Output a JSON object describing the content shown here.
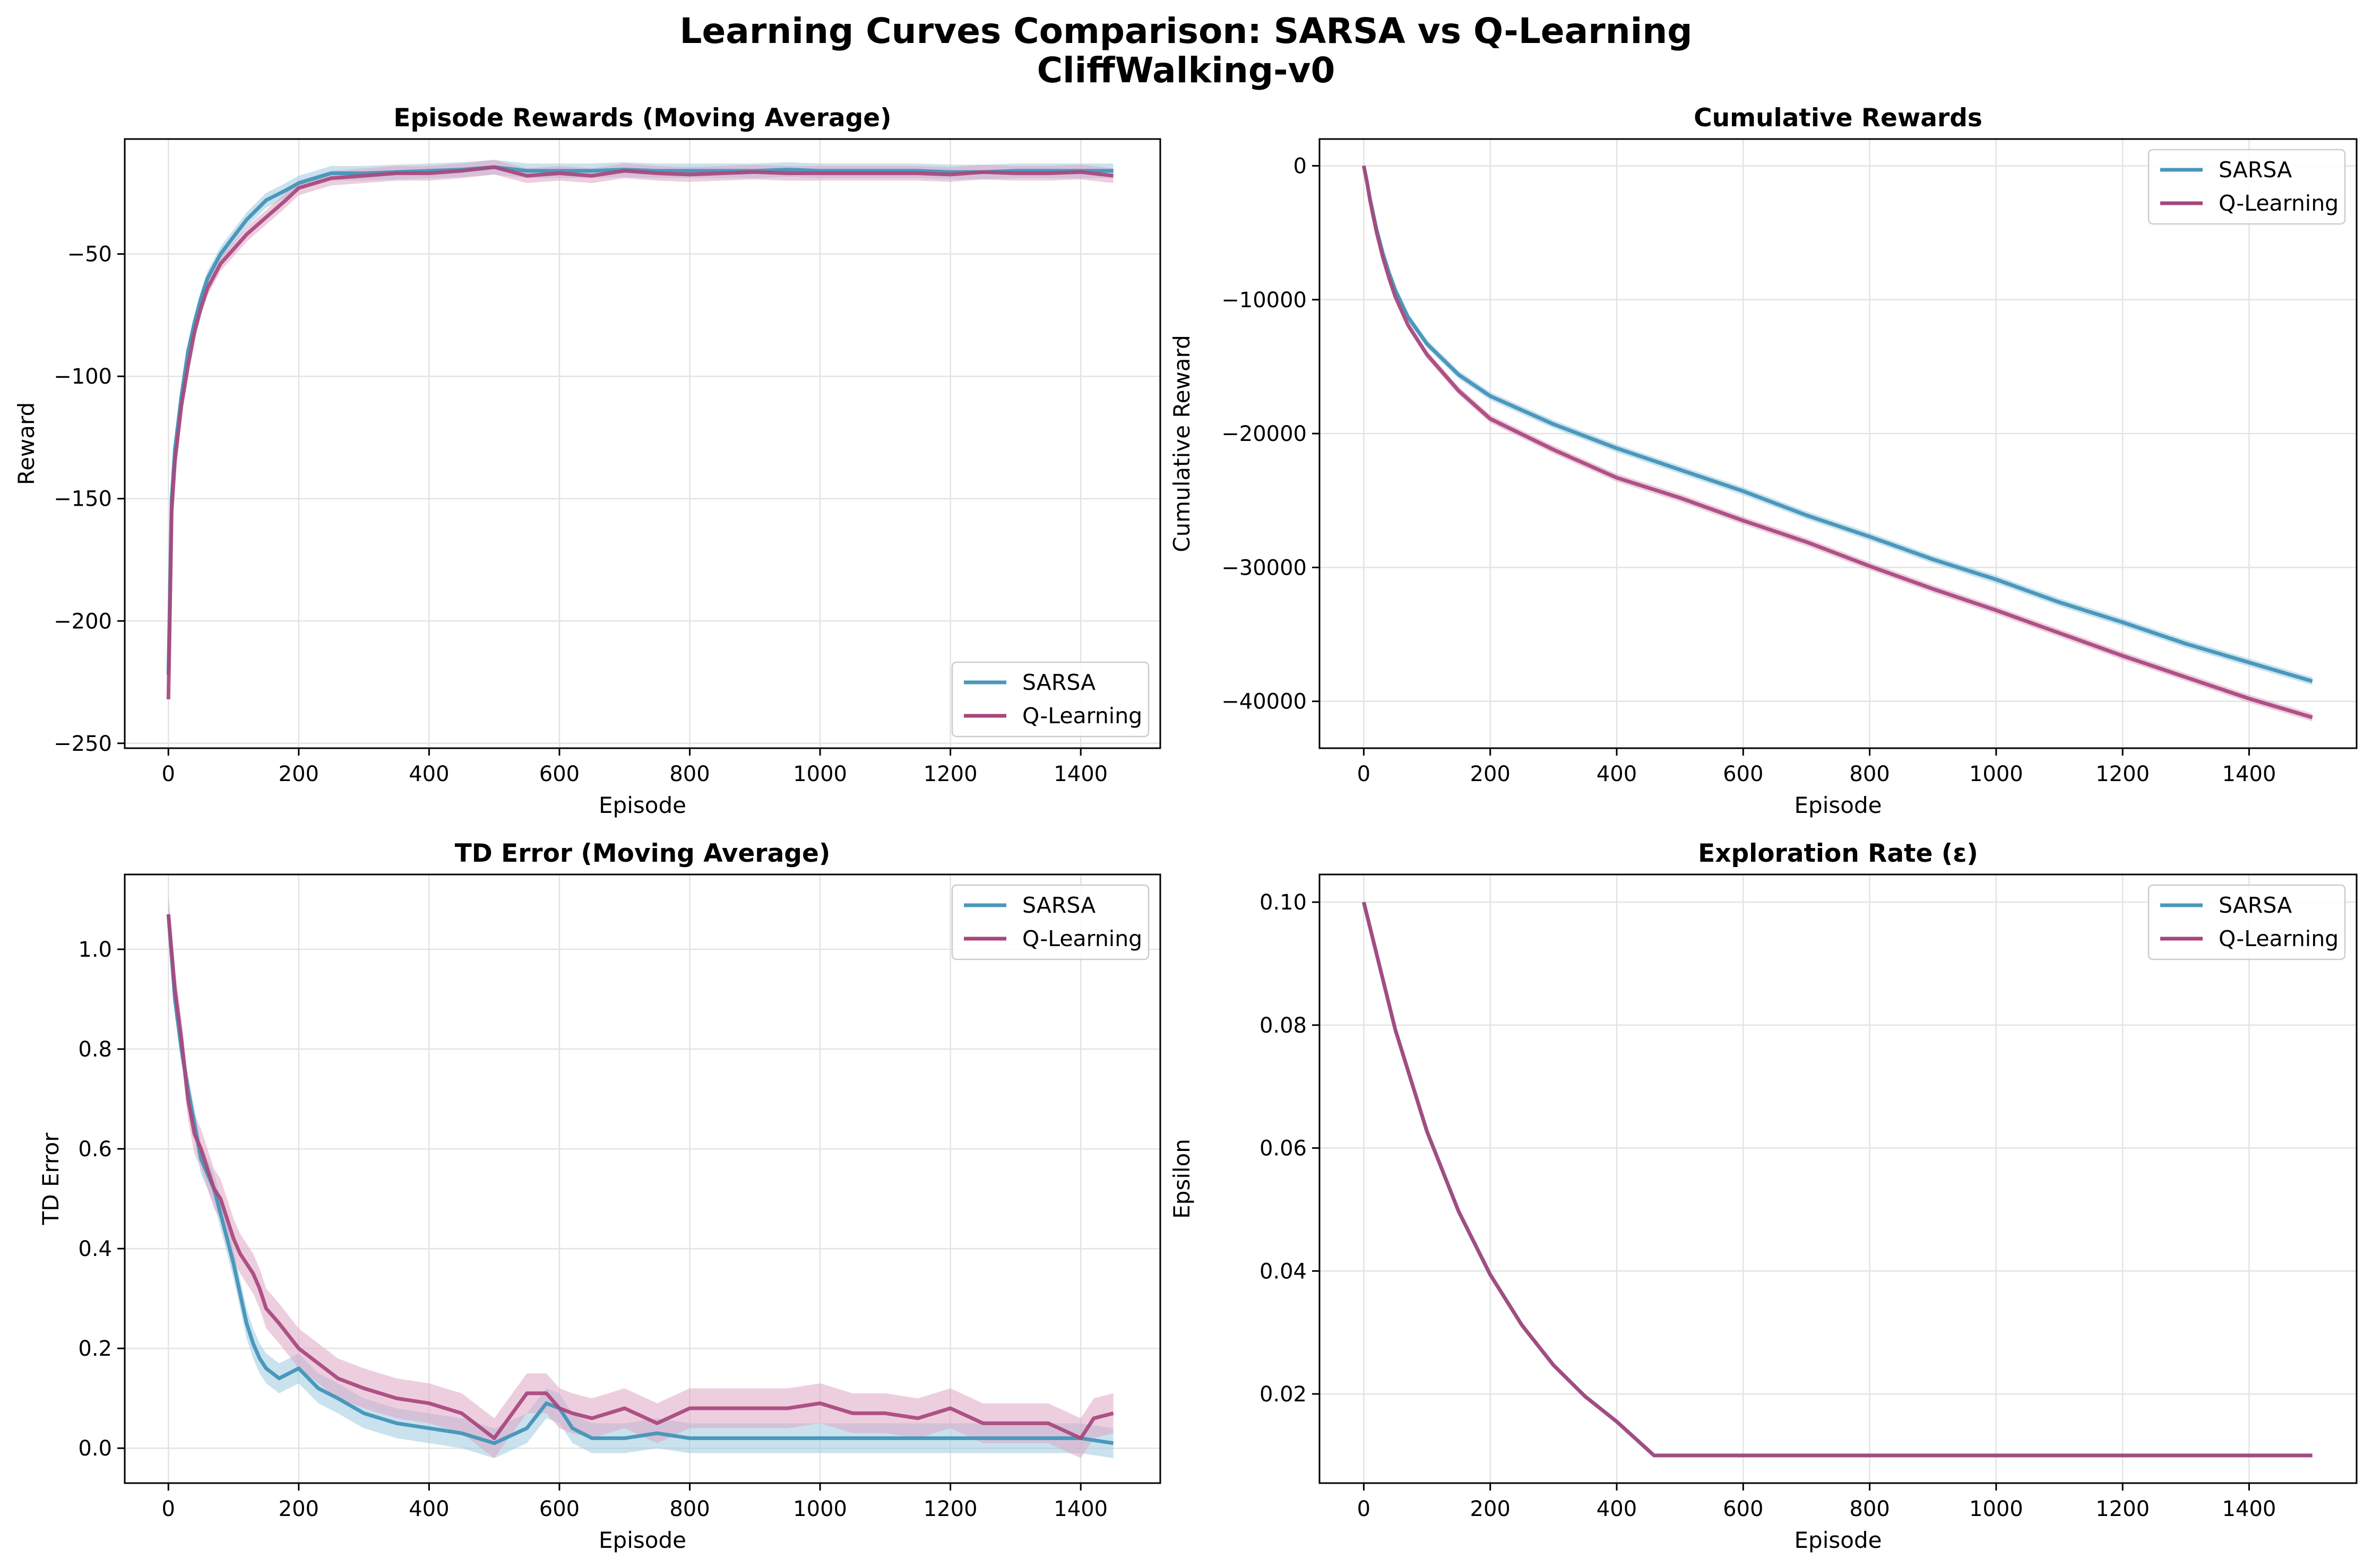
{
  "figure": {
    "title_line1": "Learning Curves Comparison: SARSA vs Q-Learning",
    "title_line2": "CliffWalking-v0"
  },
  "colors": {
    "sarsa": "#4a98bb",
    "qlearning": "#a8467d",
    "sarsa_band": "#9ccbe0",
    "qlearning_band": "#dfa6c4"
  },
  "chart_data": [
    {
      "type": "line",
      "title": "Episode Rewards (Moving Average)",
      "xlabel": "Episode",
      "ylabel": "Reward",
      "xlim": [
        -67,
        1522
      ],
      "ylim": [
        -252,
        -3
      ],
      "xticks": [
        0,
        200,
        400,
        600,
        800,
        1000,
        1200,
        1400
      ],
      "yticks": [
        -250,
        -200,
        -150,
        -100,
        -50
      ],
      "ytick_labels": [
        "−250",
        "−200",
        "−150",
        "−100",
        "−50"
      ],
      "grid": true,
      "legend": {
        "placement": "lower-right",
        "entries": [
          "SARSA",
          "Q-Learning"
        ]
      },
      "series": [
        {
          "name": "SARSA",
          "band": 3,
          "x": [
            0,
            5,
            10,
            20,
            30,
            40,
            50,
            60,
            80,
            100,
            120,
            150,
            180,
            200,
            250,
            300,
            350,
            400,
            450,
            500,
            550,
            600,
            650,
            700,
            750,
            800,
            850,
            900,
            950,
            1000,
            1050,
            1100,
            1150,
            1200,
            1250,
            1300,
            1350,
            1400,
            1450
          ],
          "values": [
            -222,
            -150,
            -130,
            -108,
            -90,
            -78,
            -68,
            -60,
            -50,
            -43,
            -36,
            -28,
            -24,
            -21,
            -17,
            -17,
            -16.5,
            -16,
            -15.5,
            -14.5,
            -16,
            -16,
            -16,
            -15.5,
            -16,
            -16,
            -16,
            -16,
            -15.5,
            -16,
            -16,
            -16,
            -16,
            -16.5,
            -16.5,
            -16,
            -16,
            -16,
            -16
          ]
        },
        {
          "name": "Q-Learning",
          "band": 3,
          "x": [
            0,
            5,
            10,
            20,
            30,
            40,
            50,
            60,
            80,
            100,
            120,
            150,
            180,
            200,
            250,
            300,
            350,
            400,
            450,
            500,
            550,
            600,
            650,
            700,
            750,
            800,
            850,
            900,
            950,
            1000,
            1050,
            1100,
            1150,
            1200,
            1250,
            1300,
            1350,
            1400,
            1450
          ],
          "values": [
            -232,
            -155,
            -135,
            -112,
            -96,
            -82,
            -72,
            -64,
            -54,
            -48,
            -42,
            -35,
            -28,
            -23,
            -19,
            -18,
            -17,
            -17,
            -16,
            -14.5,
            -18,
            -17,
            -18,
            -16,
            -17,
            -17.5,
            -17,
            -16.5,
            -17,
            -17,
            -17,
            -17,
            -17,
            -17.5,
            -16.5,
            -17,
            -17,
            -16.5,
            -18
          ]
        }
      ]
    },
    {
      "type": "line",
      "title": "Cumulative Rewards",
      "xlabel": "Episode",
      "ylabel": "Cumulative Reward",
      "xlim": [
        -70,
        1570
      ],
      "ylim": [
        -43500,
        2000
      ],
      "xticks": [
        0,
        200,
        400,
        600,
        800,
        1000,
        1200,
        1400
      ],
      "yticks": [
        -40000,
        -30000,
        -20000,
        -10000,
        0
      ],
      "ytick_labels": [
        "−40000",
        "−30000",
        "−20000",
        "−10000",
        "0"
      ],
      "grid": true,
      "legend": {
        "placement": "upper-right",
        "entries": [
          "SARSA",
          "Q-Learning"
        ]
      },
      "series": [
        {
          "name": "SARSA",
          "band": 300,
          "x": [
            0,
            5,
            10,
            20,
            30,
            40,
            50,
            70,
            100,
            150,
            200,
            300,
            400,
            500,
            600,
            700,
            800,
            900,
            1000,
            1100,
            1200,
            1300,
            1400,
            1500
          ],
          "values": [
            0,
            -1200,
            -2500,
            -4700,
            -6500,
            -8000,
            -9300,
            -11300,
            -13300,
            -15600,
            -17200,
            -19300,
            -21100,
            -22700,
            -24300,
            -26100,
            -27700,
            -29400,
            -30900,
            -32600,
            -34100,
            -35700,
            -37100,
            -38500
          ]
        },
        {
          "name": "Q-Learning",
          "band": 300,
          "x": [
            0,
            5,
            10,
            20,
            30,
            40,
            50,
            70,
            100,
            150,
            200,
            300,
            400,
            500,
            600,
            700,
            800,
            900,
            1000,
            1100,
            1200,
            1300,
            1400,
            1500
          ],
          "values": [
            0,
            -1200,
            -2600,
            -4900,
            -6800,
            -8400,
            -9800,
            -11900,
            -14100,
            -16800,
            -18900,
            -21200,
            -23300,
            -24800,
            -26500,
            -28100,
            -29900,
            -31600,
            -33200,
            -34900,
            -36600,
            -38200,
            -39800,
            -41200
          ]
        }
      ]
    },
    {
      "type": "line",
      "title": "TD Error (Moving Average)",
      "xlabel": "Episode",
      "ylabel": "TD Error",
      "xlim": [
        -67,
        1522
      ],
      "ylim": [
        -0.07,
        1.15
      ],
      "xticks": [
        0,
        200,
        400,
        600,
        800,
        1000,
        1200,
        1400
      ],
      "yticks": [
        0.0,
        0.2,
        0.4,
        0.6,
        0.8,
        1.0
      ],
      "ytick_labels": [
        "0.0",
        "0.2",
        "0.4",
        "0.6",
        "0.8",
        "1.0"
      ],
      "grid": true,
      "legend": {
        "placement": "upper-right",
        "entries": [
          "SARSA",
          "Q-Learning"
        ]
      },
      "series": [
        {
          "name": "SARSA",
          "band": 0.03,
          "x": [
            0,
            10,
            20,
            30,
            40,
            50,
            60,
            70,
            80,
            90,
            100,
            110,
            120,
            130,
            140,
            150,
            170,
            200,
            230,
            260,
            300,
            350,
            400,
            450,
            500,
            550,
            580,
            600,
            620,
            650,
            700,
            750,
            800,
            900,
            1000,
            1100,
            1200,
            1300,
            1350,
            1400,
            1450
          ],
          "values": [
            1.07,
            0.9,
            0.8,
            0.72,
            0.65,
            0.58,
            0.55,
            0.52,
            0.47,
            0.42,
            0.37,
            0.31,
            0.25,
            0.21,
            0.18,
            0.16,
            0.14,
            0.16,
            0.12,
            0.1,
            0.07,
            0.05,
            0.04,
            0.03,
            0.01,
            0.04,
            0.09,
            0.08,
            0.04,
            0.02,
            0.02,
            0.03,
            0.02,
            0.02,
            0.02,
            0.02,
            0.02,
            0.02,
            0.02,
            0.02,
            0.01
          ]
        },
        {
          "name": "Q-Learning",
          "band": 0.04,
          "x": [
            0,
            10,
            20,
            30,
            40,
            50,
            60,
            70,
            80,
            90,
            100,
            110,
            120,
            130,
            140,
            150,
            170,
            200,
            230,
            260,
            300,
            350,
            400,
            450,
            500,
            550,
            580,
            600,
            620,
            650,
            700,
            750,
            800,
            850,
            900,
            950,
            1000,
            1050,
            1100,
            1150,
            1200,
            1250,
            1300,
            1350,
            1400,
            1420,
            1450
          ],
          "values": [
            1.07,
            0.92,
            0.82,
            0.7,
            0.63,
            0.6,
            0.56,
            0.52,
            0.5,
            0.46,
            0.42,
            0.39,
            0.37,
            0.35,
            0.32,
            0.28,
            0.25,
            0.2,
            0.17,
            0.14,
            0.12,
            0.1,
            0.09,
            0.07,
            0.02,
            0.11,
            0.11,
            0.08,
            0.07,
            0.06,
            0.08,
            0.05,
            0.08,
            0.08,
            0.08,
            0.08,
            0.09,
            0.07,
            0.07,
            0.06,
            0.08,
            0.05,
            0.05,
            0.05,
            0.02,
            0.06,
            0.07
          ]
        }
      ]
    },
    {
      "type": "line",
      "title": "Exploration Rate (ε)",
      "xlabel": "Episode",
      "ylabel": "Epsilon",
      "xlim": [
        -70,
        1570
      ],
      "ylim": [
        0.0055,
        0.1045
      ],
      "xticks": [
        0,
        200,
        400,
        600,
        800,
        1000,
        1200,
        1400
      ],
      "yticks": [
        0.02,
        0.04,
        0.06,
        0.08,
        0.1
      ],
      "ytick_labels": [
        "0.02",
        "0.04",
        "0.06",
        "0.08",
        "0.10"
      ],
      "grid": true,
      "legend": {
        "placement": "upper-right",
        "entries": [
          "SARSA",
          "Q-Learning"
        ]
      },
      "series": [
        {
          "name": "SARSA",
          "band": 0,
          "x": [
            0,
            50,
            100,
            150,
            200,
            250,
            300,
            350,
            400,
            459,
            500,
            1500
          ],
          "values": [
            0.1,
            0.0792,
            0.0627,
            0.0497,
            0.0394,
            0.0312,
            0.0247,
            0.0196,
            0.0155,
            0.01,
            0.01,
            0.01
          ]
        },
        {
          "name": "Q-Learning",
          "band": 0,
          "x": [
            0,
            50,
            100,
            150,
            200,
            250,
            300,
            350,
            400,
            459,
            500,
            1500
          ],
          "values": [
            0.1,
            0.0792,
            0.0627,
            0.0497,
            0.0394,
            0.0312,
            0.0247,
            0.0196,
            0.0155,
            0.01,
            0.01,
            0.01
          ]
        }
      ]
    }
  ]
}
